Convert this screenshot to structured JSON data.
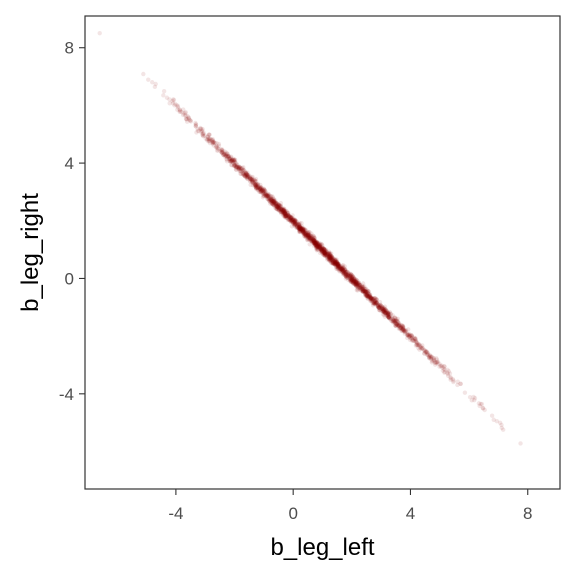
{
  "chart_data": {
    "type": "scatter",
    "title": "",
    "xlabel": "b_leg_left",
    "ylabel": "b_leg_right",
    "xlim": [
      -7.1,
      9.1
    ],
    "ylim": [
      -7.3,
      9.1
    ],
    "xticks": [
      -4,
      0,
      4,
      8
    ],
    "yticks": [
      -4,
      0,
      4,
      8
    ],
    "xtick_labels": [
      "-4",
      "0",
      "4",
      "8"
    ],
    "ytick_labels": [
      "-4",
      "0",
      "4",
      "8"
    ],
    "grid": false,
    "legend": "none",
    "point_color": "#8B0000",
    "point_alpha": 0.1,
    "relationship": {
      "intercept": 1.98,
      "slope": -1.0,
      "note_points_lie_on_line_y_equals_intercept_plus_slope_x": true
    },
    "x_range_of_points": [
      -6.6,
      8.4
    ],
    "n_points": 2000
  }
}
